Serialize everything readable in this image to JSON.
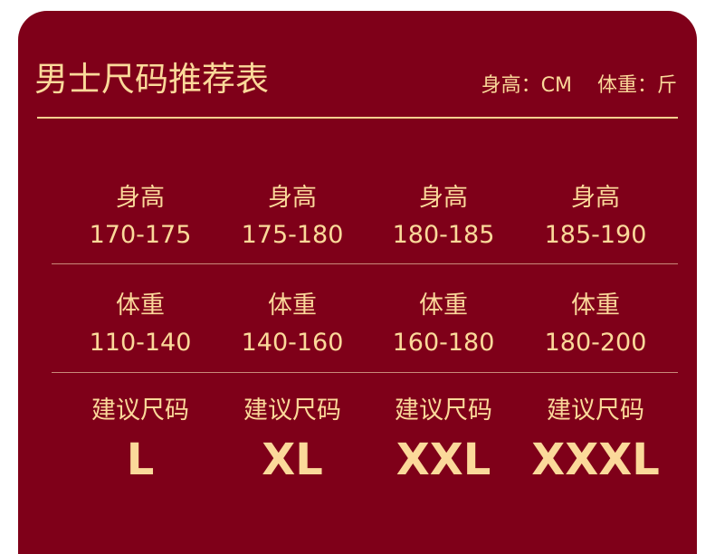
{
  "title": "男士尺码推荐表",
  "units": {
    "height": "身高：CM",
    "weight": "体重：斤"
  },
  "colors": {
    "background": "#7f0019",
    "text": "#fbd99a"
  },
  "rows": {
    "height": {
      "label": "身高",
      "values": [
        "170-175",
        "175-180",
        "180-185",
        "185-190"
      ]
    },
    "weight": {
      "label": "体重",
      "values": [
        "110-140",
        "140-160",
        "160-180",
        "180-200"
      ]
    },
    "size": {
      "label": "建议尺码",
      "values": [
        "L",
        "XL",
        "XXL",
        "XXXL"
      ]
    }
  }
}
